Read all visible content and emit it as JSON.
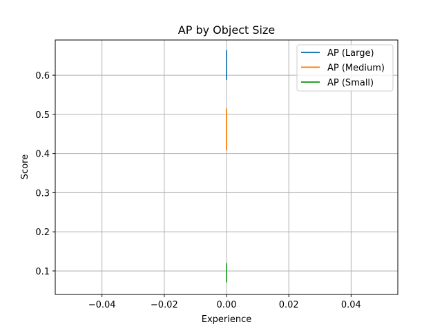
{
  "chart_data": {
    "type": "line",
    "title": "AP by Object Size",
    "xlabel": "Experience",
    "ylabel": "Score",
    "xlim": [
      -0.055,
      0.055
    ],
    "ylim": [
      0.04,
      0.69
    ],
    "xticks": [
      -0.04,
      -0.02,
      0.0,
      0.02,
      0.04
    ],
    "xtick_labels": [
      "−0.04",
      "−0.02",
      "0.00",
      "0.02",
      "0.04"
    ],
    "yticks": [
      0.1,
      0.2,
      0.3,
      0.4,
      0.5,
      0.6
    ],
    "ytick_labels": [
      "0.1",
      "0.2",
      "0.3",
      "0.4",
      "0.5",
      "0.6"
    ],
    "grid": true,
    "legend_position": "upper-right",
    "series": [
      {
        "name": "AP (Large)",
        "color": "#1f77b4",
        "x": [
          0,
          0
        ],
        "y": [
          0.588,
          0.664
        ]
      },
      {
        "name": "AP (Medium)",
        "color": "#ff7f0e",
        "x": [
          0,
          0
        ],
        "y": [
          0.408,
          0.515
        ]
      },
      {
        "name": "AP (Small)",
        "color": "#2ca02c",
        "x": [
          0,
          0
        ],
        "y": [
          0.071,
          0.12
        ]
      }
    ]
  }
}
